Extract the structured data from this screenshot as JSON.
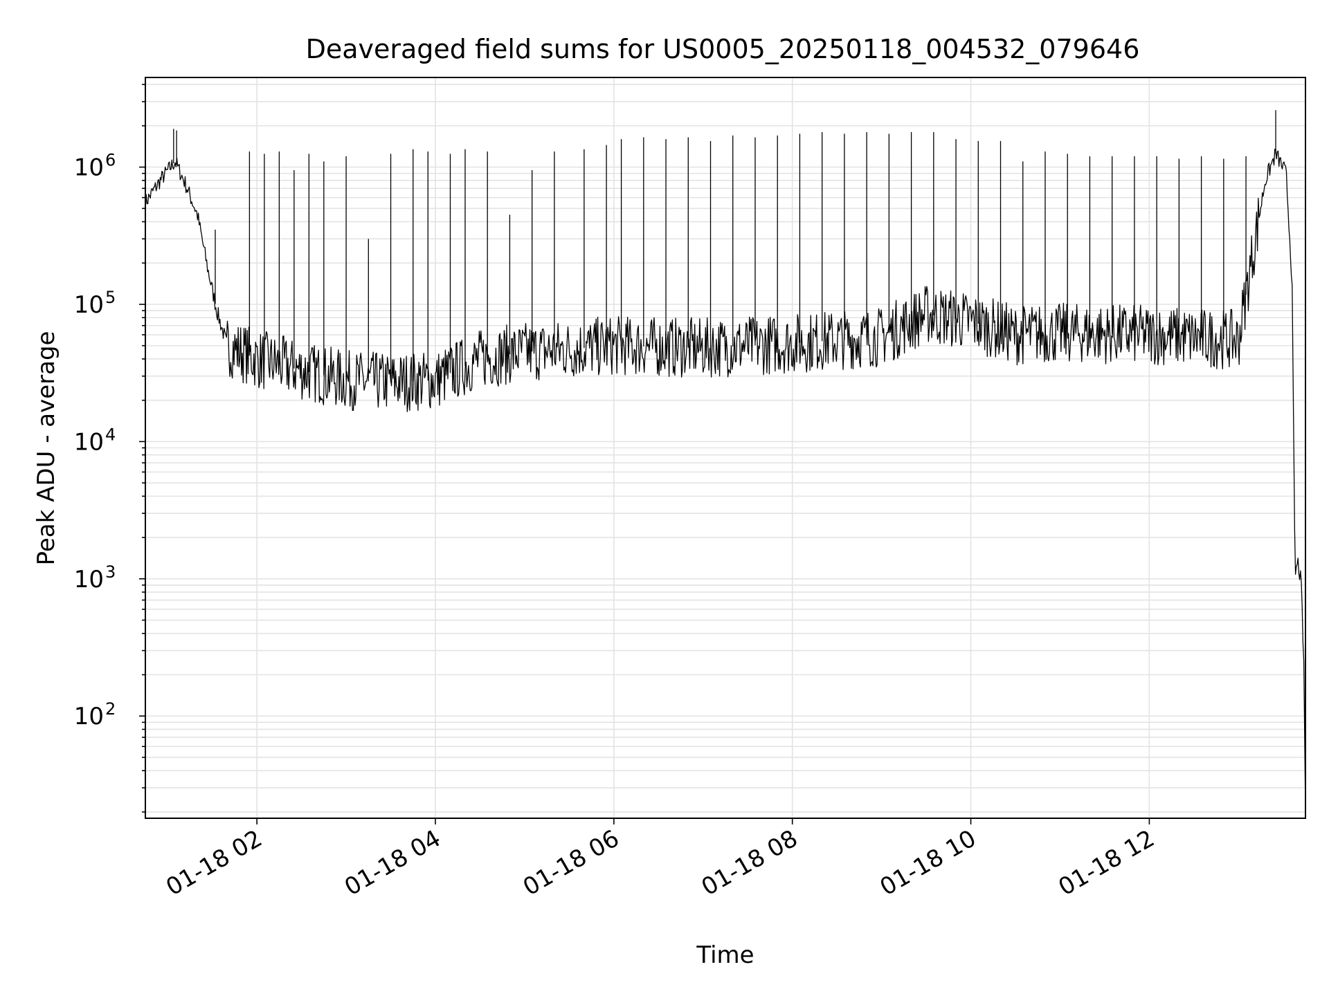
{
  "chart_data": {
    "type": "line",
    "title": "Deaveraged field sums for US0005_20250118_004532_079646",
    "xlabel": "Time",
    "ylabel": "Peak ADU - average",
    "yscale": "log",
    "grid": true,
    "grid_minor": true,
    "ylim": [
      18,
      4500000
    ],
    "xlim": [
      "2025-01-18 00:45",
      "2025-01-18 13:45"
    ],
    "x_ticks": [
      "2025-01-18 02:00",
      "2025-01-18 04:00",
      "2025-01-18 06:00",
      "2025-01-18 08:00",
      "2025-01-18 10:00",
      "2025-01-18 12:00"
    ],
    "x_tick_labels": [
      "01-18 02",
      "01-18 04",
      "01-18 06",
      "01-18 08",
      "01-18 10",
      "01-18 12"
    ],
    "y_ticks": [
      100,
      1000,
      10000,
      100000,
      1000000
    ],
    "y_tick_labels": [
      {
        "base": "10",
        "exp": "2"
      },
      {
        "base": "10",
        "exp": "3"
      },
      {
        "base": "10",
        "exp": "4"
      },
      {
        "base": "10",
        "exp": "5"
      },
      {
        "base": "10",
        "exp": "6"
      }
    ],
    "series": [
      {
        "color": "#000000",
        "baseline": {
          "x": [
            "2025-01-18 00:45",
            "2025-01-18 00:55",
            "2025-01-18 01:05",
            "2025-01-18 01:12",
            "2025-01-18 01:20",
            "2025-01-18 01:27",
            "2025-01-18 01:33",
            "2025-01-18 01:40",
            "2025-01-18 02:00",
            "2025-01-18 02:30",
            "2025-01-18 03:00",
            "2025-01-18 03:30",
            "2025-01-18 04:00",
            "2025-01-18 04:30",
            "2025-01-18 05:00",
            "2025-01-18 05:30",
            "2025-01-18 06:00",
            "2025-01-18 07:00",
            "2025-01-18 08:00",
            "2025-01-18 09:00",
            "2025-01-18 09:30",
            "2025-01-18 10:00",
            "2025-01-18 10:30",
            "2025-01-18 11:00",
            "2025-01-18 12:00",
            "2025-01-18 13:00",
            "2025-01-18 13:10",
            "2025-01-18 13:18",
            "2025-01-18 13:25",
            "2025-01-18 13:32",
            "2025-01-18 13:36",
            "2025-01-18 13:38",
            "2025-01-18 13:40",
            "2025-01-18 13:42",
            "2025-01-18 13:43",
            "2025-01-18 13:44",
            "2025-01-18 13:45"
          ],
          "y": [
            550000,
            800000,
            1100000,
            750000,
            450000,
            180000,
            90000,
            50000,
            40000,
            33000,
            28000,
            27000,
            28000,
            40000,
            45000,
            47000,
            50000,
            48000,
            52000,
            58000,
            85000,
            75000,
            60000,
            62000,
            60000,
            55000,
            250000,
            800000,
            1250000,
            900000,
            150000,
            1100,
            1300,
            950,
            500,
            200,
            20
          ]
        },
        "spikes": {
          "x": [
            "2025-01-18 01:04",
            "2025-01-18 01:06",
            "2025-01-18 01:32",
            "2025-01-18 01:55",
            "2025-01-18 02:05",
            "2025-01-18 02:15",
            "2025-01-18 02:25",
            "2025-01-18 02:35",
            "2025-01-18 02:45",
            "2025-01-18 03:00",
            "2025-01-18 03:15",
            "2025-01-18 03:30",
            "2025-01-18 03:45",
            "2025-01-18 03:55",
            "2025-01-18 04:10",
            "2025-01-18 04:20",
            "2025-01-18 04:35",
            "2025-01-18 04:50",
            "2025-01-18 05:05",
            "2025-01-18 05:20",
            "2025-01-18 05:40",
            "2025-01-18 05:55",
            "2025-01-18 06:05",
            "2025-01-18 06:20",
            "2025-01-18 06:35",
            "2025-01-18 06:50",
            "2025-01-18 07:05",
            "2025-01-18 07:20",
            "2025-01-18 07:35",
            "2025-01-18 07:50",
            "2025-01-18 08:05",
            "2025-01-18 08:20",
            "2025-01-18 08:35",
            "2025-01-18 08:50",
            "2025-01-18 09:05",
            "2025-01-18 09:20",
            "2025-01-18 09:35",
            "2025-01-18 09:50",
            "2025-01-18 10:05",
            "2025-01-18 10:20",
            "2025-01-18 10:35",
            "2025-01-18 10:50",
            "2025-01-18 11:05",
            "2025-01-18 11:20",
            "2025-01-18 11:35",
            "2025-01-18 11:50",
            "2025-01-18 12:05",
            "2025-01-18 12:20",
            "2025-01-18 12:35",
            "2025-01-18 12:50",
            "2025-01-18 13:05",
            "2025-01-18 13:25"
          ],
          "y": [
            1900000,
            1850000,
            350000,
            1300000,
            1250000,
            1300000,
            950000,
            1250000,
            1100000,
            1200000,
            300000,
            1250000,
            1350000,
            1300000,
            1250000,
            1350000,
            1300000,
            450000,
            950000,
            1300000,
            1350000,
            1450000,
            1600000,
            1650000,
            1600000,
            1650000,
            1550000,
            1700000,
            1650000,
            1700000,
            1750000,
            1800000,
            1750000,
            1800000,
            1750000,
            1800000,
            1800000,
            1600000,
            1550000,
            1550000,
            1100000,
            1300000,
            1250000,
            1200000,
            1200000,
            1200000,
            1200000,
            1150000,
            1200000,
            1150000,
            1200000,
            2600000
          ]
        }
      }
    ]
  }
}
